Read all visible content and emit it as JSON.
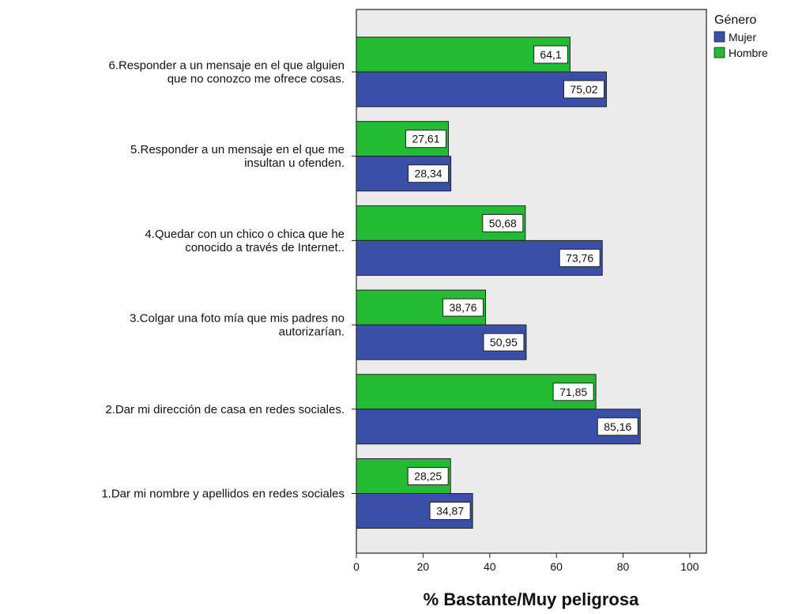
{
  "chart_data": {
    "type": "bar",
    "orientation": "horizontal",
    "categories": [
      [
        "6.Responder a un mensaje en el que alguien",
        "que no conozco me ofrece cosas."
      ],
      [
        "5.Responder a un mensaje en el que me",
        "insultan u ofenden."
      ],
      [
        "4.Quedar con un chico o chica que he",
        "conocido a través de Internet.."
      ],
      [
        "3.Colgar una foto mía que mis padres no",
        "autorizarían."
      ],
      [
        "2.Dar mi dirección de casa en redes sociales."
      ],
      [
        "1.Dar mi nombre y apellidos en redes sociales"
      ]
    ],
    "series": [
      {
        "name": "Hombre",
        "color": "#22bb33",
        "values": [
          64.1,
          27.61,
          50.68,
          38.76,
          71.85,
          28.25
        ],
        "labels": [
          "64,1",
          "27,61",
          "50,68",
          "38,76",
          "71,85",
          "28,25"
        ]
      },
      {
        "name": "Mujer",
        "color": "#3a4fa8",
        "values": [
          75.02,
          28.34,
          73.76,
          50.95,
          85.16,
          34.87
        ],
        "labels": [
          "75,02",
          "28,34",
          "73,76",
          "50,95",
          "85,16",
          "34,87"
        ]
      }
    ],
    "legend": {
      "title": "Género",
      "entries": [
        {
          "name": "Mujer",
          "color": "#3a4fa8"
        },
        {
          "name": "Hombre",
          "color": "#22bb33"
        }
      ],
      "position": "top-right"
    },
    "xlabel": "% Bastante/Muy peligrosa",
    "xlim": [
      0,
      105
    ],
    "xticks": [
      0,
      20,
      40,
      60,
      80,
      100
    ],
    "grid": false,
    "plot_background": "#ebebeb"
  }
}
